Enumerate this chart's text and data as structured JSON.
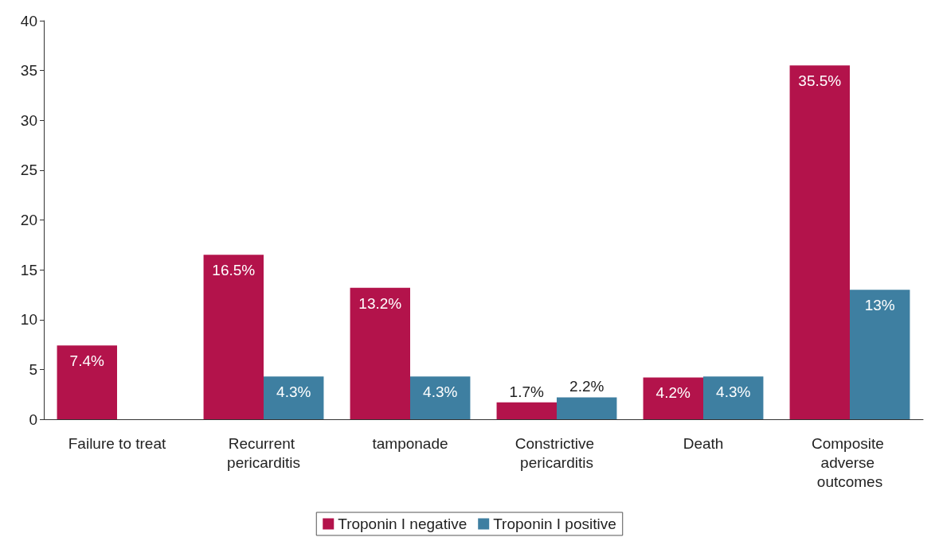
{
  "chart_data": {
    "type": "bar",
    "categories": [
      "Failure to treat",
      "Recurrent pericarditis",
      "tamponade",
      "Constrictive pericarditis",
      "Death",
      "Composite adverse outcomes"
    ],
    "series": [
      {
        "name": "Troponin I negative",
        "color": "#b3134b",
        "values": [
          7.4,
          16.5,
          13.2,
          1.7,
          4.2,
          35.5
        ],
        "value_labels": [
          "7.4%",
          "16.5%",
          "13.2%",
          "1.7%",
          "4.2%",
          "35.5%"
        ]
      },
      {
        "name": "Troponin I positive",
        "color": "#3e7fa1",
        "values": [
          null,
          4.3,
          4.3,
          2.2,
          4.3,
          13
        ],
        "value_labels": [
          null,
          "4.3%",
          "4.3%",
          "2.2%",
          "4.3%",
          "13%"
        ]
      }
    ],
    "ylim": [
      0,
      40
    ],
    "yticks": [
      0,
      5,
      10,
      15,
      20,
      25,
      30,
      35,
      40
    ],
    "grid": false,
    "legend": "bottom"
  }
}
